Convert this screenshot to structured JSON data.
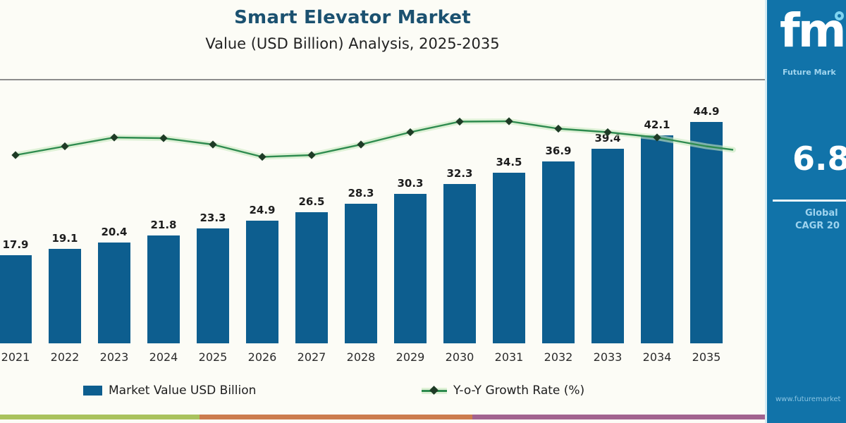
{
  "header": {
    "title": "Smart Elevator Market",
    "subtitle": "Value (USD Billion) Analysis, 2025-2035"
  },
  "chart_data": {
    "type": "combo",
    "title": "Smart Elevator Market Value (USD Billion) Analysis, 2025-2035",
    "categories": [
      "2021",
      "2022",
      "2023",
      "2024",
      "2025",
      "2026",
      "2027",
      "2028",
      "2029",
      "2030",
      "2031",
      "2032",
      "2033",
      "2034",
      "2035"
    ],
    "series": [
      {
        "name": "Market Value USD Billion",
        "type": "bar",
        "color": "#0d5e8f",
        "values": [
          17.9,
          19.1,
          20.4,
          21.8,
          23.3,
          24.9,
          26.5,
          28.3,
          30.3,
          32.3,
          34.5,
          36.9,
          39.4,
          42.1,
          44.9
        ]
      },
      {
        "name": "Y-o-Y Growth Rate (%)",
        "type": "line",
        "color": "#2e8b4f",
        "axis_labeled": false,
        "values_estimated_from_pixels": true,
        "values": [
          6.2,
          6.45,
          6.7,
          6.68,
          6.5,
          6.15,
          6.2,
          6.5,
          6.85,
          7.15,
          7.16,
          6.95,
          6.85,
          6.7,
          6.45
        ]
      }
    ],
    "xlabel": "",
    "ylabel": "",
    "value_labels_shown": true,
    "gridlines": false,
    "legend_position": "bottom"
  },
  "legend": {
    "bar_label": "Market Value USD Billion",
    "line_label": "Y-o-Y Growth Rate (%)"
  },
  "side_panel": {
    "logo_text": "fmi",
    "logo_subtext": "Future Mark",
    "cagr_value": "6.8",
    "caption_line1": "Global",
    "caption_line2": "CAGR 20",
    "footer_url": "www.futuremarket",
    "bg_color": "#1173a9"
  },
  "colors": {
    "bar": "#0d5e8f",
    "line": "#2e8b4f",
    "line_halo": "#c9e9c2",
    "line_marker": "#1e3b26",
    "title": "#1b5170",
    "panel_bg": "#1173a9",
    "stripe_green": "#a9c25d",
    "stripe_orange": "#cc7c4e",
    "stripe_purple": "#a2638f",
    "background": "#fcfcf6"
  }
}
